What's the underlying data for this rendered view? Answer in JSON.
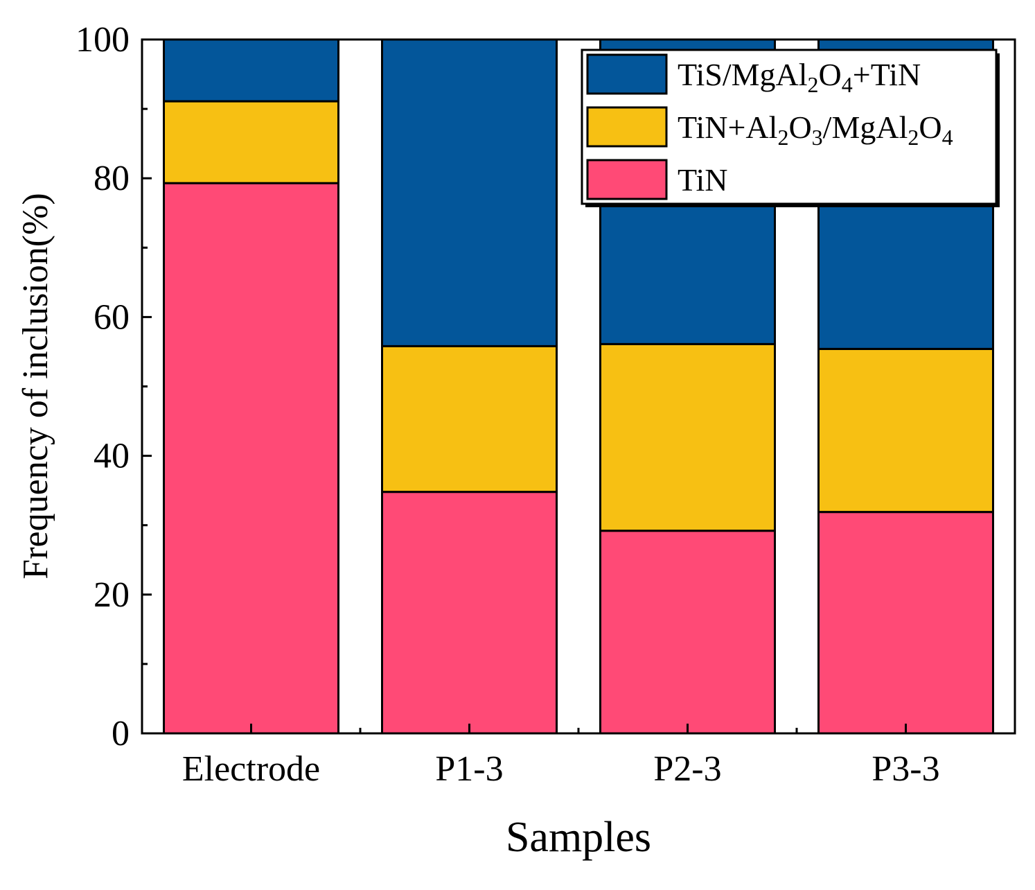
{
  "chart_data": {
    "type": "bar",
    "stacked": true,
    "categories": [
      "Electrode",
      "P1-3",
      "P2-3",
      "P3-3"
    ],
    "series": [
      {
        "name": "TiN",
        "color": "#FF4A76",
        "values": [
          79.3,
          34.8,
          29.2,
          31.9
        ]
      },
      {
        "name": "TiN+Al2O3/MgAl2O4",
        "color": "#F7C013",
        "values": [
          11.8,
          21.0,
          26.9,
          23.5
        ]
      },
      {
        "name": "TiS/MgAl2O4+TiN",
        "color": "#03569A",
        "values": [
          8.9,
          44.2,
          43.9,
          44.6
        ]
      }
    ],
    "xlabel": "Samples",
    "ylabel": "Frequency of inclusion(%)",
    "ylim": [
      0,
      100
    ],
    "yticks": [
      0,
      20,
      40,
      60,
      80,
      100
    ],
    "legend_position": "top-right",
    "grid": false
  },
  "legend": {
    "entries": [
      {
        "series_index": 2,
        "parts": [
          [
            "TiS/MgAl",
            ""
          ],
          [
            "2",
            "sub"
          ],
          [
            "O",
            ""
          ],
          [
            "4",
            "sub"
          ],
          [
            "+TiN",
            ""
          ]
        ]
      },
      {
        "series_index": 1,
        "parts": [
          [
            "TiN+Al",
            ""
          ],
          [
            "2",
            "sub"
          ],
          [
            "O",
            ""
          ],
          [
            "3",
            "sub"
          ],
          [
            "/MgAl",
            ""
          ],
          [
            "2",
            "sub"
          ],
          [
            "O",
            ""
          ],
          [
            "4",
            "sub"
          ]
        ]
      },
      {
        "series_index": 0,
        "parts": [
          [
            "TiN",
            ""
          ]
        ]
      }
    ]
  }
}
